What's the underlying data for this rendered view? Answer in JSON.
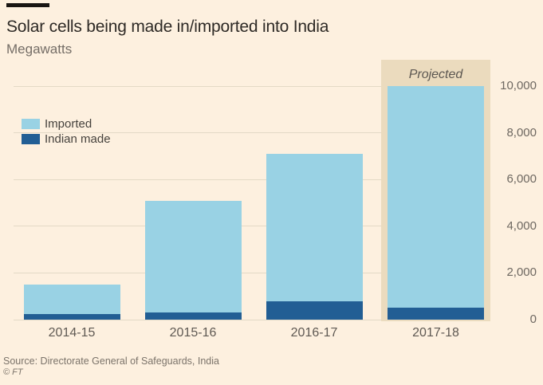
{
  "header": {
    "title": "Solar cells being made in/imported into India",
    "subtitle": "Megawatts"
  },
  "legend": [
    {
      "label": "Imported",
      "color": "#99d2e4"
    },
    {
      "label": "Indian made",
      "color": "#225e94"
    }
  ],
  "footer": {
    "source": "Source: Directorate General of Safeguards, India",
    "copyright": "© FT"
  },
  "colors": {
    "background": "#fdf0df",
    "imported": "#99d2e4",
    "indian_made": "#225e94",
    "projected_band": "#ebdbbe",
    "gridline": "#e3d9c6",
    "title_text": "#2e2a26",
    "muted_text": "#6e6861"
  },
  "chart_data": {
    "type": "bar",
    "stacked": true,
    "title": "Solar cells being made in/imported into India",
    "ylabel": "Megawatts",
    "categories": [
      "2014-15",
      "2015-16",
      "2016-17",
      "2017-18"
    ],
    "series": [
      {
        "name": "Indian made",
        "color": "#225e94",
        "values": [
          250,
          300,
          800,
          500
        ]
      },
      {
        "name": "Imported",
        "color": "#99d2e4",
        "values": [
          1250,
          4800,
          6300,
          9500
        ]
      }
    ],
    "totals": [
      1500,
      5100,
      7100,
      10000
    ],
    "ylim": [
      0,
      10000
    ],
    "yticks": [
      0,
      2000,
      4000,
      6000,
      8000,
      10000
    ],
    "ytick_labels": [
      "0",
      "2,000",
      "4,000",
      "6,000",
      "8,000",
      "10,000"
    ],
    "grid": true,
    "ytick_side": "right",
    "legend_position": "upper-left",
    "projected_category": "2017-18",
    "annotations": [
      {
        "text": "Projected",
        "category": "2017-18"
      }
    ]
  }
}
